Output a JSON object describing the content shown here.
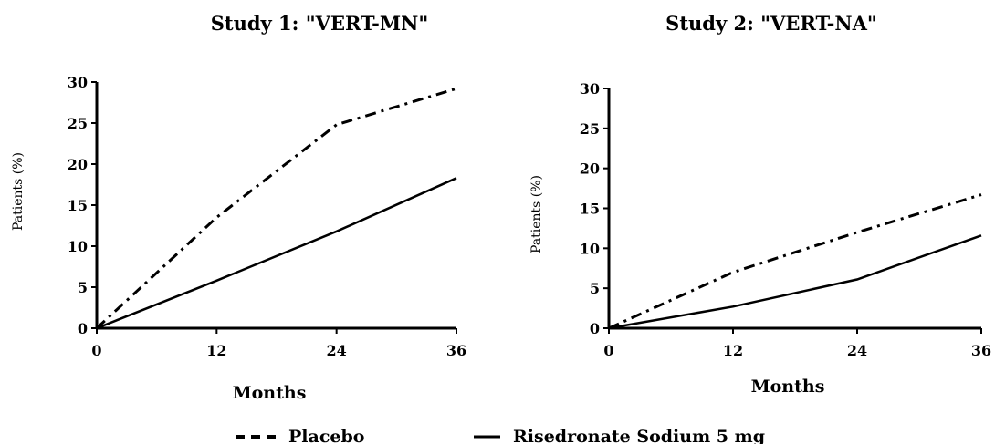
{
  "chart_data": [
    {
      "type": "line",
      "title": "Study 1: \"VERT-MN\"",
      "xlabel": "Months",
      "ylabel": "Patients (%)",
      "x_ticks": [
        "0",
        "12",
        "24",
        "36"
      ],
      "y_ticks": [
        "0",
        "5",
        "10",
        "15",
        "20",
        "25",
        "30"
      ],
      "xlim": [
        0,
        36
      ],
      "ylim": [
        0,
        30
      ],
      "grid": false,
      "series": [
        {
          "name": "Placebo",
          "style": "dash-dot",
          "x": [
            0,
            12,
            24,
            36
          ],
          "y": [
            0,
            13.5,
            24.8,
            29.2
          ]
        },
        {
          "name": "Risedronate Sodium 5 mg",
          "style": "solid",
          "x": [
            0,
            12,
            24,
            36
          ],
          "y": [
            0,
            5.8,
            11.8,
            18.3
          ]
        }
      ]
    },
    {
      "type": "line",
      "title": "Study 2: \"VERT-NA\"",
      "xlabel": "Months",
      "ylabel": "Patients (%)",
      "x_ticks": [
        "0",
        "12",
        "24",
        "36"
      ],
      "y_ticks": [
        "0",
        "5",
        "10",
        "15",
        "20",
        "25",
        "30"
      ],
      "xlim": [
        0,
        36
      ],
      "ylim": [
        0,
        30
      ],
      "grid": false,
      "series": [
        {
          "name": "Placebo",
          "style": "dash-dot",
          "x": [
            0,
            12,
            24,
            36
          ],
          "y": [
            0,
            7,
            12,
            16.7
          ]
        },
        {
          "name": "Risedronate Sodium 5 mg",
          "style": "solid",
          "x": [
            0,
            12,
            24,
            36
          ],
          "y": [
            0,
            2.7,
            6.1,
            11.6
          ]
        }
      ]
    }
  ],
  "legend": {
    "placement": "bottom-center",
    "items": [
      {
        "label": "Placebo",
        "style": "dash-dot"
      },
      {
        "label": "Risedronate Sodium 5 mg",
        "style": "solid"
      }
    ]
  }
}
